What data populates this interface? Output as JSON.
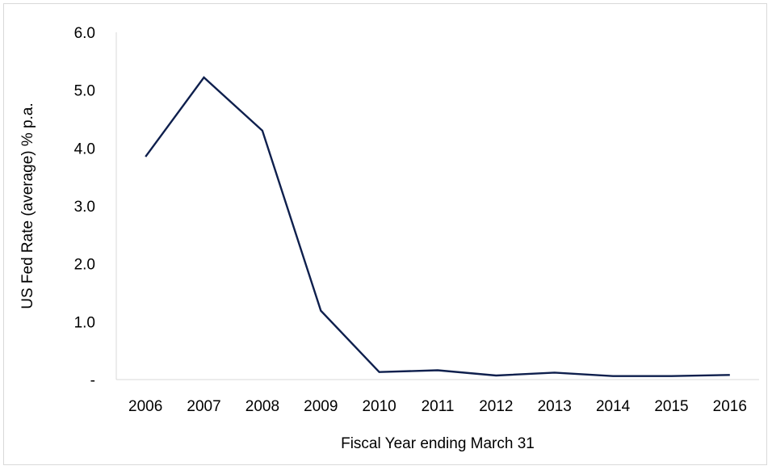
{
  "chart_data": {
    "type": "line",
    "title": "",
    "xlabel": "Fiscal Year ending March 31",
    "ylabel": "US Fed Rate (average) % p.a.",
    "ylim": [
      0,
      6
    ],
    "y_ticks": [
      "-",
      "1.0",
      "2.0",
      "3.0",
      "4.0",
      "5.0",
      "6.0"
    ],
    "grid": false,
    "legend": "none",
    "categories": [
      "2006",
      "2007",
      "2008",
      "2009",
      "2010",
      "2011",
      "2012",
      "2013",
      "2014",
      "2015",
      "2016"
    ],
    "series": [
      {
        "color": "#0e1f4d",
        "values": [
          3.85,
          5.22,
          4.3,
          1.19,
          0.13,
          0.16,
          0.07,
          0.12,
          0.06,
          0.06,
          0.08
        ]
      }
    ]
  }
}
